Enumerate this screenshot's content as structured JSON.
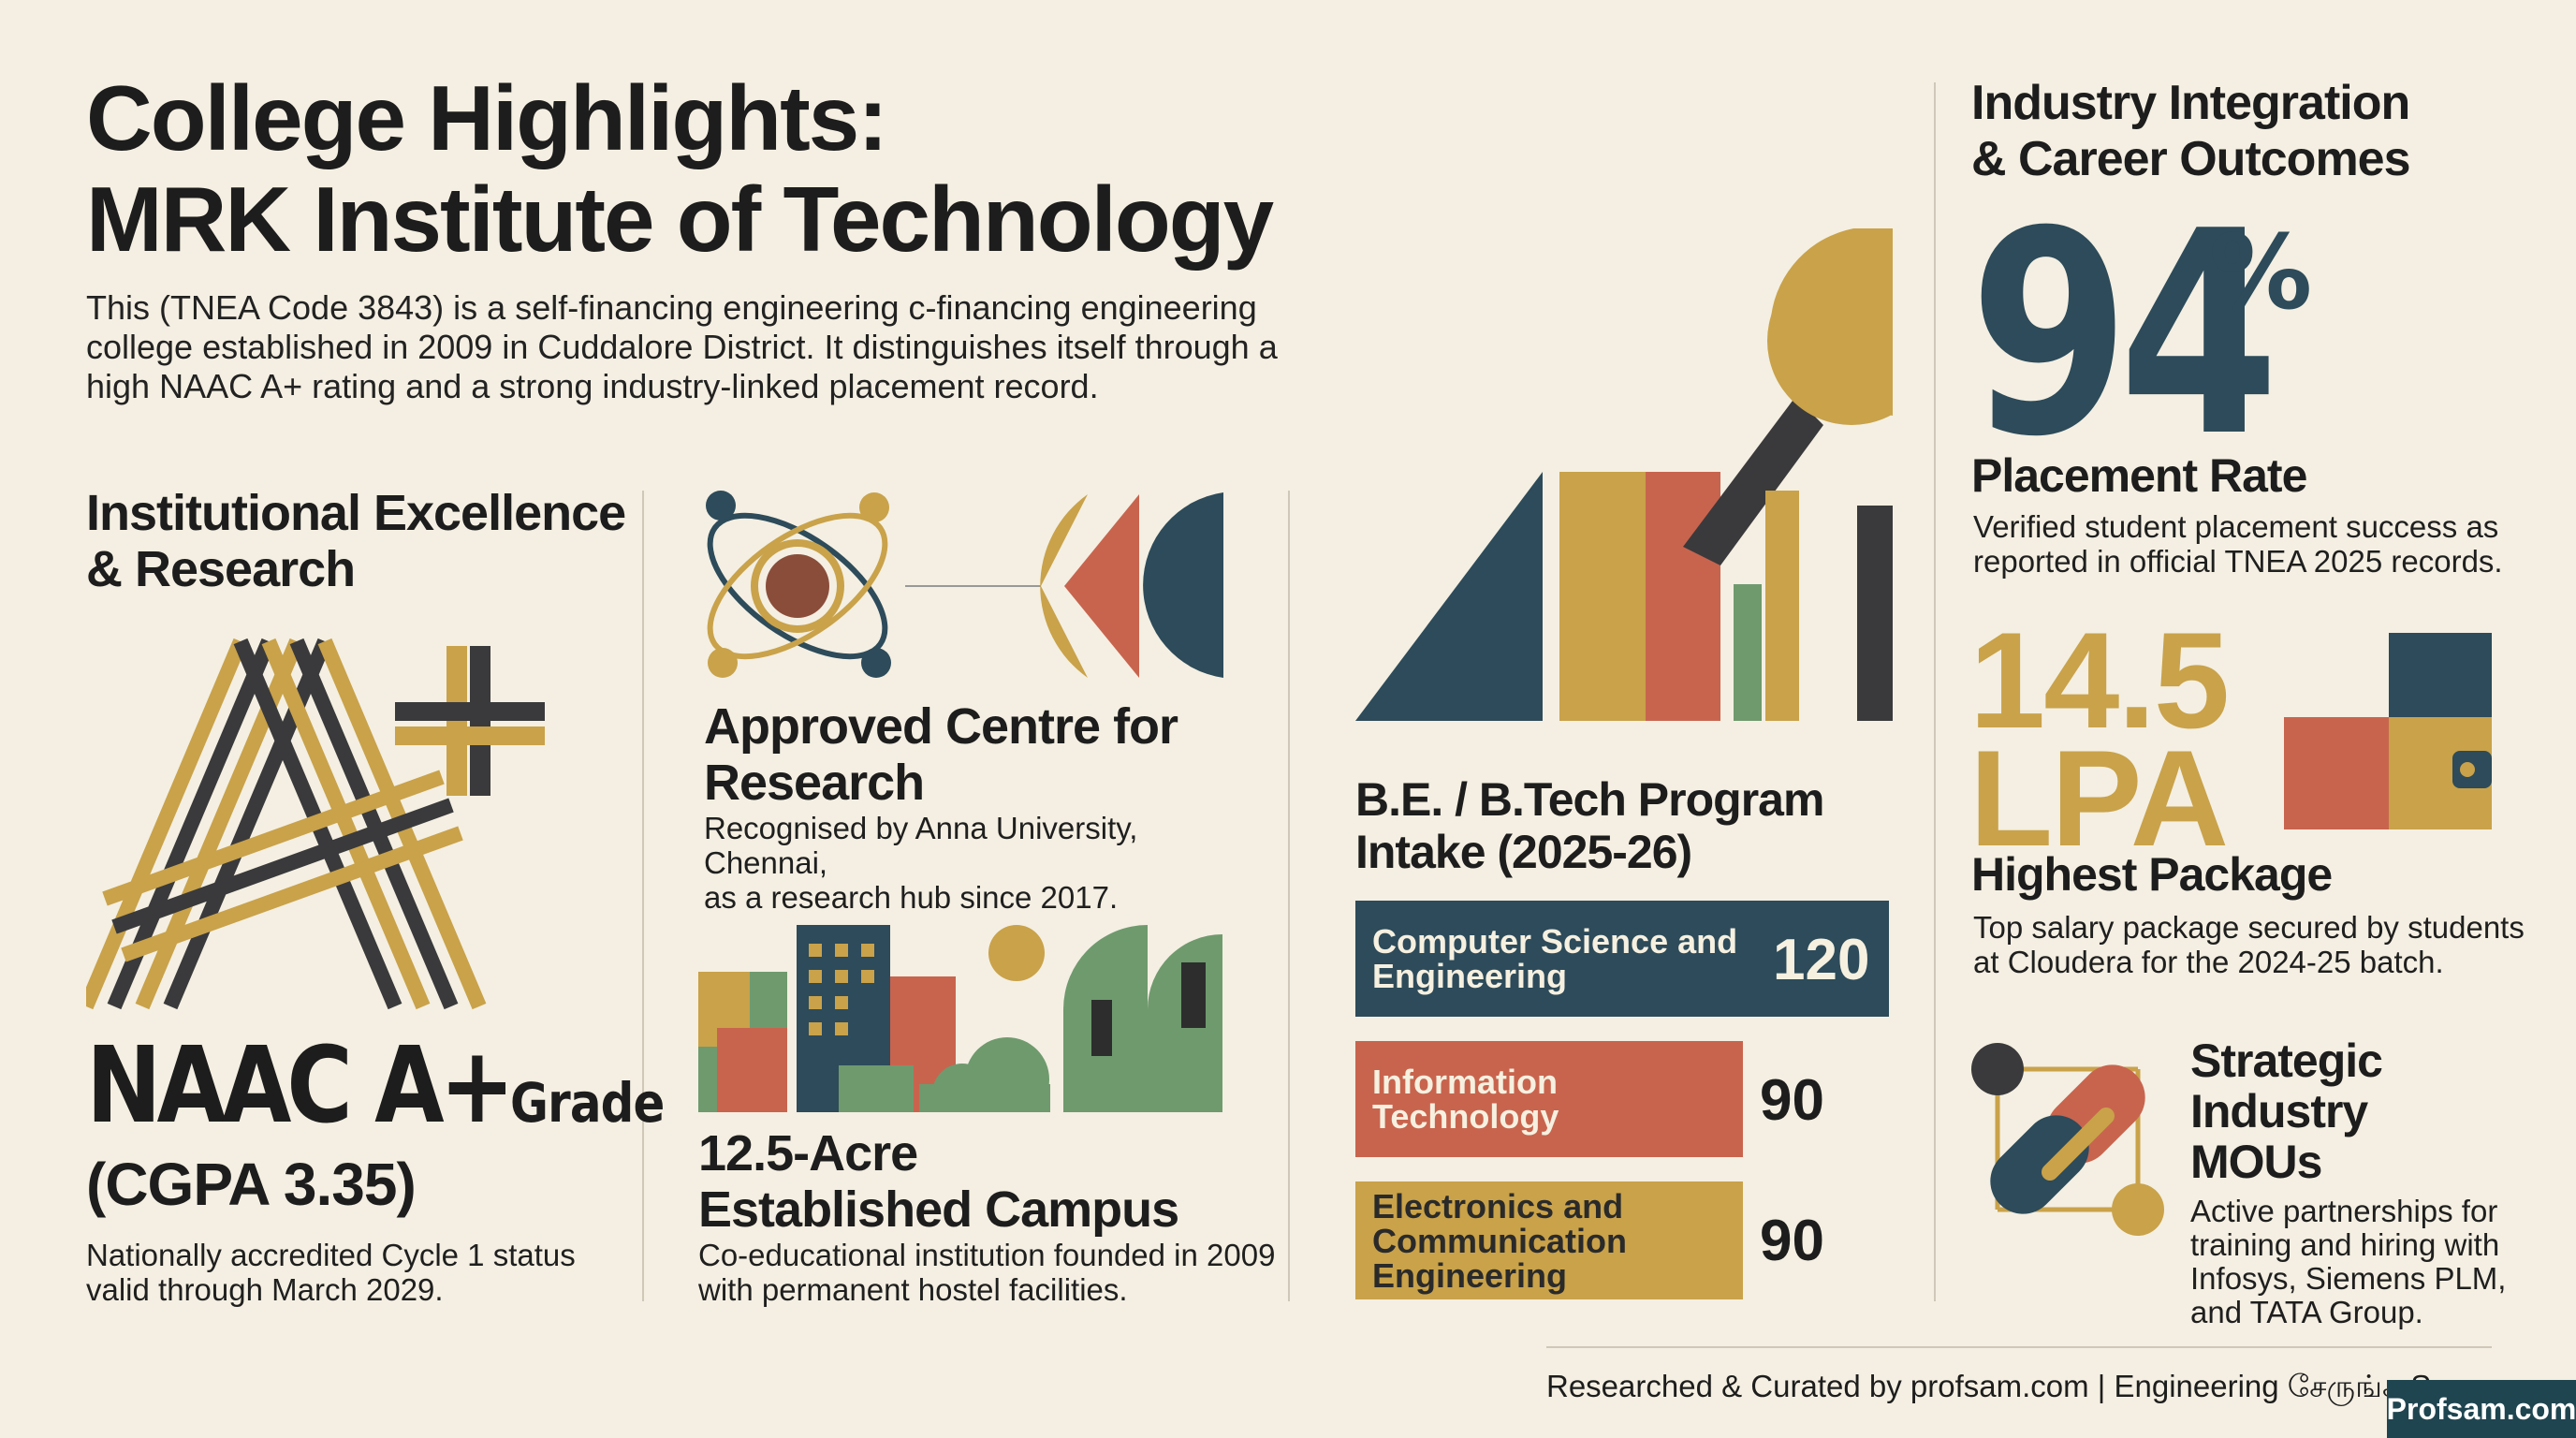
{
  "header": {
    "title_line1": "College Highlights:",
    "title_line2": "MRK Institute of Technology",
    "intro": "This (TNEA Code 3843) is a self-financing engineering c‑financing engineering college established in 2009 in Cuddalore District. It distinguishes itself through a high NAAC A+ rating and a strong industry-linked placement record."
  },
  "excellence": {
    "heading_line1": "Institutional Excellence",
    "heading_line2": "& Research",
    "grade_main": "NAAC A+",
    "grade_suffix": "Grade",
    "cgpa": "(CGPA 3.35)",
    "desc_line1": "Nationally accredited Cycle 1 status",
    "desc_line2": "valid through March 2029."
  },
  "research": {
    "heading_line1": "Approved Centre for",
    "heading_line2": "Research",
    "desc_line1": "Recognised by Anna University, Chennai,",
    "desc_line2": "as a research hub since 2017."
  },
  "campus": {
    "heading_line1": "12.5-Acre",
    "heading_line2": "Established Campus",
    "desc_line1": "Co-educational institution founded in 2009",
    "desc_line2": "with permanent hostel facilities."
  },
  "intake": {
    "heading_line1": "B.E. / B.Tech Program",
    "heading_line2": "Intake (2025-26)",
    "programs": [
      {
        "line1": "Computer Science and",
        "line2": "Engineering",
        "line3": "",
        "seats": "120",
        "color": "#2d4b5a"
      },
      {
        "line1": "Information",
        "line2": "Technology",
        "line3": "",
        "seats": "90",
        "color": "#c8644e"
      },
      {
        "line1": "Electronics and",
        "line2": "Communication",
        "line3": "Engineering",
        "seats": "90",
        "color": "#c9a24a"
      }
    ]
  },
  "careers": {
    "heading_line1": "Industry Integration",
    "heading_line2": "& Career Outcomes",
    "placement_value": "94",
    "placement_unit": "%",
    "placement_label": "Placement Rate",
    "placement_desc_line1": "Verified student placement success as",
    "placement_desc_line2": "reported in official TNEA 2025 records.",
    "package_value": "14.5",
    "package_unit": "LPA",
    "package_label": "Highest Package",
    "package_desc_line1": "Top salary package secured by students",
    "package_desc_line2": "at Cloudera for the 2024-25 batch.",
    "mou_line1": "Strategic",
    "mou_line2": "Industry",
    "mou_line3": "MOUs",
    "mou_desc_line1": "Active partnerships for",
    "mou_desc_line2": "training and hiring with",
    "mou_desc_line3": "Infosys, Siemens PLM,",
    "mou_desc_line4": "and TATA Group."
  },
  "footer": {
    "credit": "Researched & Curated by profsam.com | Engineering சேருங்க S...",
    "badge": "Profsam.com"
  },
  "palette": {
    "navy": "#2d4b5a",
    "terracotta": "#c8644e",
    "mustard": "#c9a24a",
    "sage": "#6f9a6e",
    "charcoal": "#3a3a3c",
    "cream": "#f4efe2"
  }
}
